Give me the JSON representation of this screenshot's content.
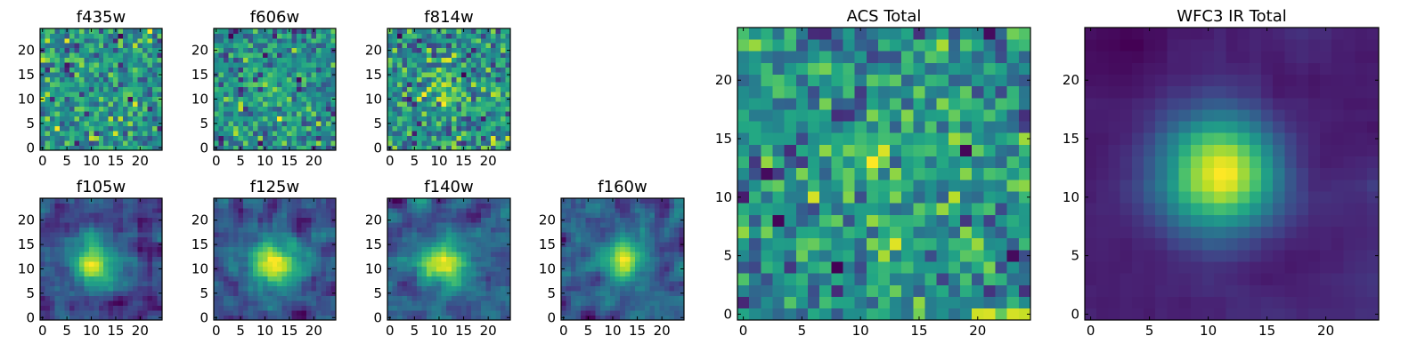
{
  "chart_data": [
    {
      "type": "heatmap",
      "title": "f435w",
      "x_ticks": [
        "0",
        "5",
        "10",
        "15",
        "20"
      ],
      "y_ticks": [
        "0",
        "5",
        "10",
        "15",
        "20"
      ],
      "xlim": [
        -0.5,
        24.5
      ],
      "ylim": [
        -0.5,
        24.5
      ],
      "grid_size": [
        25,
        25
      ],
      "colormap": "viridis",
      "pattern": "noise",
      "source_peak": [
        12,
        12
      ],
      "source_width": 4.0,
      "seed": 11
    },
    {
      "type": "heatmap",
      "title": "f606w",
      "x_ticks": [
        "0",
        "5",
        "10",
        "15",
        "20"
      ],
      "y_ticks": [
        "0",
        "5",
        "10",
        "15",
        "20"
      ],
      "xlim": [
        -0.5,
        24.5
      ],
      "ylim": [
        -0.5,
        24.5
      ],
      "grid_size": [
        25,
        25
      ],
      "colormap": "viridis",
      "pattern": "faint-source",
      "source_peak": [
        11,
        12
      ],
      "source_width": 3.5,
      "seed": 23
    },
    {
      "type": "heatmap",
      "title": "f814w",
      "x_ticks": [
        "0",
        "5",
        "10",
        "15",
        "20"
      ],
      "y_ticks": [
        "0",
        "5",
        "10",
        "15",
        "20"
      ],
      "xlim": [
        -0.5,
        24.5
      ],
      "ylim": [
        -0.5,
        24.5
      ],
      "grid_size": [
        25,
        25
      ],
      "colormap": "viridis",
      "pattern": "faint-source",
      "source_peak": [
        12,
        12
      ],
      "source_width": 3.0,
      "seed": 37
    },
    {
      "type": "heatmap",
      "title": "f105w",
      "x_ticks": [
        "0",
        "5",
        "10",
        "15",
        "20"
      ],
      "y_ticks": [
        "0",
        "5",
        "10",
        "15",
        "20"
      ],
      "xlim": [
        -0.5,
        24.5
      ],
      "ylim": [
        -0.5,
        24.5
      ],
      "grid_size": [
        25,
        25
      ],
      "colormap": "viridis",
      "pattern": "source",
      "source_peak": [
        11,
        11
      ],
      "source_width": 3.5,
      "seed": 41
    },
    {
      "type": "heatmap",
      "title": "f125w",
      "x_ticks": [
        "0",
        "5",
        "10",
        "15",
        "20"
      ],
      "y_ticks": [
        "0",
        "5",
        "10",
        "15",
        "20"
      ],
      "xlim": [
        -0.5,
        24.5
      ],
      "ylim": [
        -0.5,
        24.5
      ],
      "grid_size": [
        25,
        25
      ],
      "colormap": "viridis",
      "pattern": "source",
      "source_peak": [
        12,
        11
      ],
      "source_width": 3.5,
      "seed": 53
    },
    {
      "type": "heatmap",
      "title": "f140w",
      "x_ticks": [
        "0",
        "5",
        "10",
        "15",
        "20"
      ],
      "y_ticks": [
        "0",
        "5",
        "10",
        "15",
        "20"
      ],
      "xlim": [
        -0.5,
        24.5
      ],
      "ylim": [
        -0.5,
        24.5
      ],
      "grid_size": [
        25,
        25
      ],
      "colormap": "viridis",
      "pattern": "source",
      "source_peak": [
        11,
        11
      ],
      "source_width": 3.0,
      "seed": 67
    },
    {
      "type": "heatmap",
      "title": "f160w",
      "x_ticks": [
        "0",
        "5",
        "10",
        "15",
        "20"
      ],
      "y_ticks": [
        "0",
        "5",
        "10",
        "15",
        "20"
      ],
      "xlim": [
        -0.5,
        24.5
      ],
      "ylim": [
        -0.5,
        24.5
      ],
      "grid_size": [
        25,
        25
      ],
      "colormap": "viridis",
      "pattern": "source",
      "source_peak": [
        12,
        12
      ],
      "source_width": 3.0,
      "seed": 71
    },
    {
      "type": "heatmap",
      "title": "ACS Total",
      "x_ticks": [
        "0",
        "5",
        "10",
        "15",
        "20"
      ],
      "y_ticks": [
        "0",
        "5",
        "10",
        "15",
        "20"
      ],
      "xlim": [
        -0.5,
        24.5
      ],
      "ylim": [
        -0.5,
        24.5
      ],
      "grid_size": [
        25,
        25
      ],
      "colormap": "viridis",
      "pattern": "faint-source",
      "source_peak": [
        12,
        12
      ],
      "source_width": 3.5,
      "seed": 83
    },
    {
      "type": "heatmap",
      "title": "WFC3 IR Total",
      "x_ticks": [
        "0",
        "5",
        "10",
        "15",
        "20"
      ],
      "y_ticks": [
        "0",
        "5",
        "10",
        "15",
        "20"
      ],
      "xlim": [
        -0.5,
        24.5
      ],
      "ylim": [
        -0.5,
        24.5
      ],
      "grid_size": [
        25,
        25
      ],
      "colormap": "viridis",
      "pattern": "smooth-source",
      "source_peak": [
        11,
        12
      ],
      "source_width": 3.5,
      "seed": 97
    }
  ]
}
